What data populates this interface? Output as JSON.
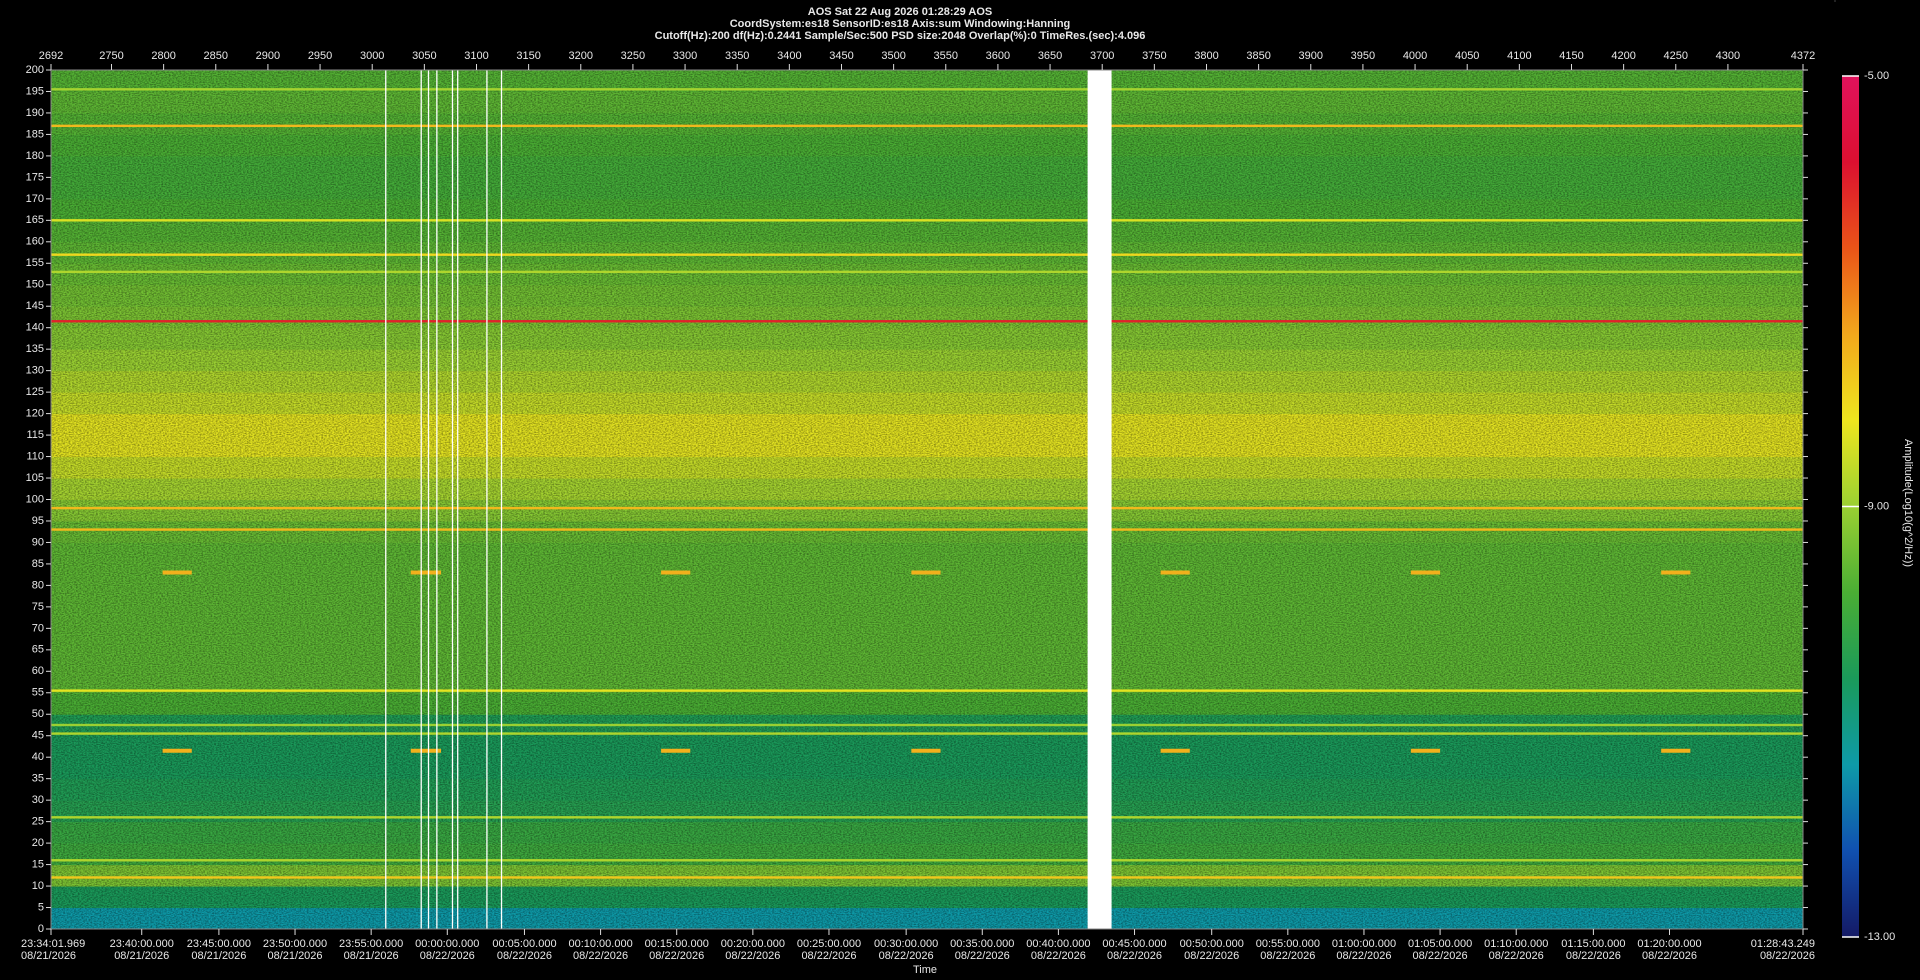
{
  "chart_data": {
    "type": "spectrogram",
    "title": "AOS  Sat 22 Aug 2026 01:28:29  AOS",
    "subtitle": "CoordSystem:es18   SensorID:es18    Axis:sum    Windowing:Hanning",
    "subtitle2": "Cutoff(Hz):200       df(Hz):0.2441       Sample/Sec:500       PSD size:2048       Overlap(%):0        TimeRes.(sec):4.096",
    "x_label": "Time",
    "colorbar_label": "Amplitude(Log10(g^2/Hz))",
    "xlim": [
      2692,
      4372
    ],
    "xticks": [
      2692,
      2750,
      2800,
      2850,
      2900,
      2950,
      3000,
      3050,
      3100,
      3150,
      3200,
      3250,
      3300,
      3350,
      3400,
      3450,
      3500,
      3550,
      3600,
      3650,
      3700,
      3750,
      3800,
      3850,
      3900,
      3950,
      4000,
      4050,
      4100,
      4150,
      4200,
      4250,
      4300,
      4372
    ],
    "time_ticks": [
      {
        "value": 2692,
        "label": "23:34:01.969",
        "date": "08/21/2026"
      },
      {
        "value": 2779,
        "label": "23:40:00.000",
        "date": "08/21/2026"
      },
      {
        "value": 2853,
        "label": "23:45:00.000",
        "date": "08/21/2026"
      },
      {
        "value": 2926,
        "label": "23:50:00.000",
        "date": "08/21/2026"
      },
      {
        "value": 2999,
        "label": "23:55:00.000",
        "date": "08/21/2026"
      },
      {
        "value": 3072,
        "label": "00:00:00.000",
        "date": "08/22/2026"
      },
      {
        "value": 3146,
        "label": "00:05:00.000",
        "date": "08/22/2026"
      },
      {
        "value": 3219,
        "label": "00:10:00.000",
        "date": "08/22/2026"
      },
      {
        "value": 3292,
        "label": "00:15:00.000",
        "date": "08/22/2026"
      },
      {
        "value": 3365,
        "label": "00:20:00.000",
        "date": "08/22/2026"
      },
      {
        "value": 3438,
        "label": "00:25:00.000",
        "date": "08/22/2026"
      },
      {
        "value": 3512,
        "label": "00:30:00.000",
        "date": "08/22/2026"
      },
      {
        "value": 3585,
        "label": "00:35:00.000",
        "date": "08/22/2026"
      },
      {
        "value": 3658,
        "label": "00:40:00.000",
        "date": "08/22/2026"
      },
      {
        "value": 3731,
        "label": "00:45:00.000",
        "date": "08/22/2026"
      },
      {
        "value": 3805,
        "label": "00:50:00.000",
        "date": "08/22/2026"
      },
      {
        "value": 3878,
        "label": "00:55:00.000",
        "date": "08/22/2026"
      },
      {
        "value": 3951,
        "label": "01:00:00.000",
        "date": "08/22/2026"
      },
      {
        "value": 4024,
        "label": "01:05:00.000",
        "date": "08/22/2026"
      },
      {
        "value": 4097,
        "label": "01:10:00.000",
        "date": "08/22/2026"
      },
      {
        "value": 4171,
        "label": "01:15:00.000",
        "date": "08/22/2026"
      },
      {
        "value": 4244,
        "label": "01:20:00.000",
        "date": "08/22/2026"
      },
      {
        "value": 4372,
        "label": "01:28:43.249",
        "date": "08/22/2026"
      }
    ],
    "ylim": [
      0,
      200
    ],
    "yticks": [
      0,
      5,
      10,
      15,
      20,
      25,
      30,
      35,
      40,
      45,
      50,
      55,
      60,
      65,
      70,
      75,
      80,
      85,
      90,
      95,
      100,
      105,
      110,
      115,
      120,
      125,
      130,
      135,
      140,
      145,
      150,
      155,
      160,
      165,
      170,
      175,
      180,
      185,
      190,
      195,
      200
    ],
    "clim": [
      -13,
      -5
    ],
    "cticks": [
      {
        "value": -5,
        "label": "-5.00"
      },
      {
        "value": -9,
        "label": "-9.00"
      },
      {
        "value": -13,
        "label": "-13.00"
      }
    ],
    "colormap": [
      "#141a66",
      "#1050b0",
      "#0e9aa8",
      "#1a9a5a",
      "#4aae34",
      "#9ad032",
      "#eee61e",
      "#f2a81c",
      "#ea5418",
      "#dc1030",
      "#e0125c"
    ],
    "band_edges": [
      0,
      5,
      10,
      15,
      20,
      25,
      30,
      35,
      40,
      45,
      50,
      55,
      60,
      65,
      70,
      75,
      80,
      85,
      90,
      95,
      100,
      105,
      110,
      115,
      120,
      125,
      130,
      135,
      140,
      145,
      150,
      155,
      160,
      165,
      170,
      175,
      180,
      185,
      190,
      195,
      200
    ],
    "band_values": [
      -11.4,
      -10.6,
      -9.3,
      -10.0,
      -10.1,
      -10.4,
      -10.5,
      -10.6,
      -10.6,
      -10.5,
      -9.8,
      -9.6,
      -9.6,
      -9.6,
      -9.6,
      -9.6,
      -9.6,
      -9.6,
      -9.5,
      -9.2,
      -8.9,
      -8.6,
      -8.3,
      -8.3,
      -8.6,
      -8.8,
      -9.0,
      -9.2,
      -9.3,
      -9.4,
      -9.5,
      -9.6,
      -9.7,
      -9.8,
      -9.9,
      -9.9,
      -9.8,
      -9.7,
      -9.6,
      -9.7
    ],
    "tones": [
      {
        "freq": 141.5,
        "amplitude": -6.0
      },
      {
        "freq": 187,
        "amplitude": -7.6
      },
      {
        "freq": 98,
        "amplitude": -7.6
      },
      {
        "freq": 93,
        "amplitude": -7.6
      },
      {
        "freq": 157,
        "amplitude": -8.0
      },
      {
        "freq": 165,
        "amplitude": -8.4
      },
      {
        "freq": 55.5,
        "amplitude": -8.3
      },
      {
        "freq": 12,
        "amplitude": -7.8
      },
      {
        "freq": 45.5,
        "amplitude": -8.8
      },
      {
        "freq": 26,
        "amplitude": -8.8
      },
      {
        "freq": 16,
        "amplitude": -8.8
      },
      {
        "freq": 153,
        "amplitude": -8.8
      },
      {
        "freq": 195.5,
        "amplitude": -8.9
      },
      {
        "freq": 47.5,
        "amplitude": -9.0
      }
    ],
    "pulses": {
      "freqs": [
        41.5,
        83
      ],
      "amplitude": -7.5,
      "starts": [
        2799,
        3037,
        3277,
        3517,
        3756,
        3996,
        4236
      ],
      "ends": [
        2827,
        3066,
        3305,
        3545,
        3784,
        4024,
        4264
      ]
    },
    "gap": [
      3686,
      3709
    ],
    "dropouts": [
      3013,
      3047,
      3054,
      3062,
      3077,
      3082,
      3110,
      3124
    ]
  }
}
